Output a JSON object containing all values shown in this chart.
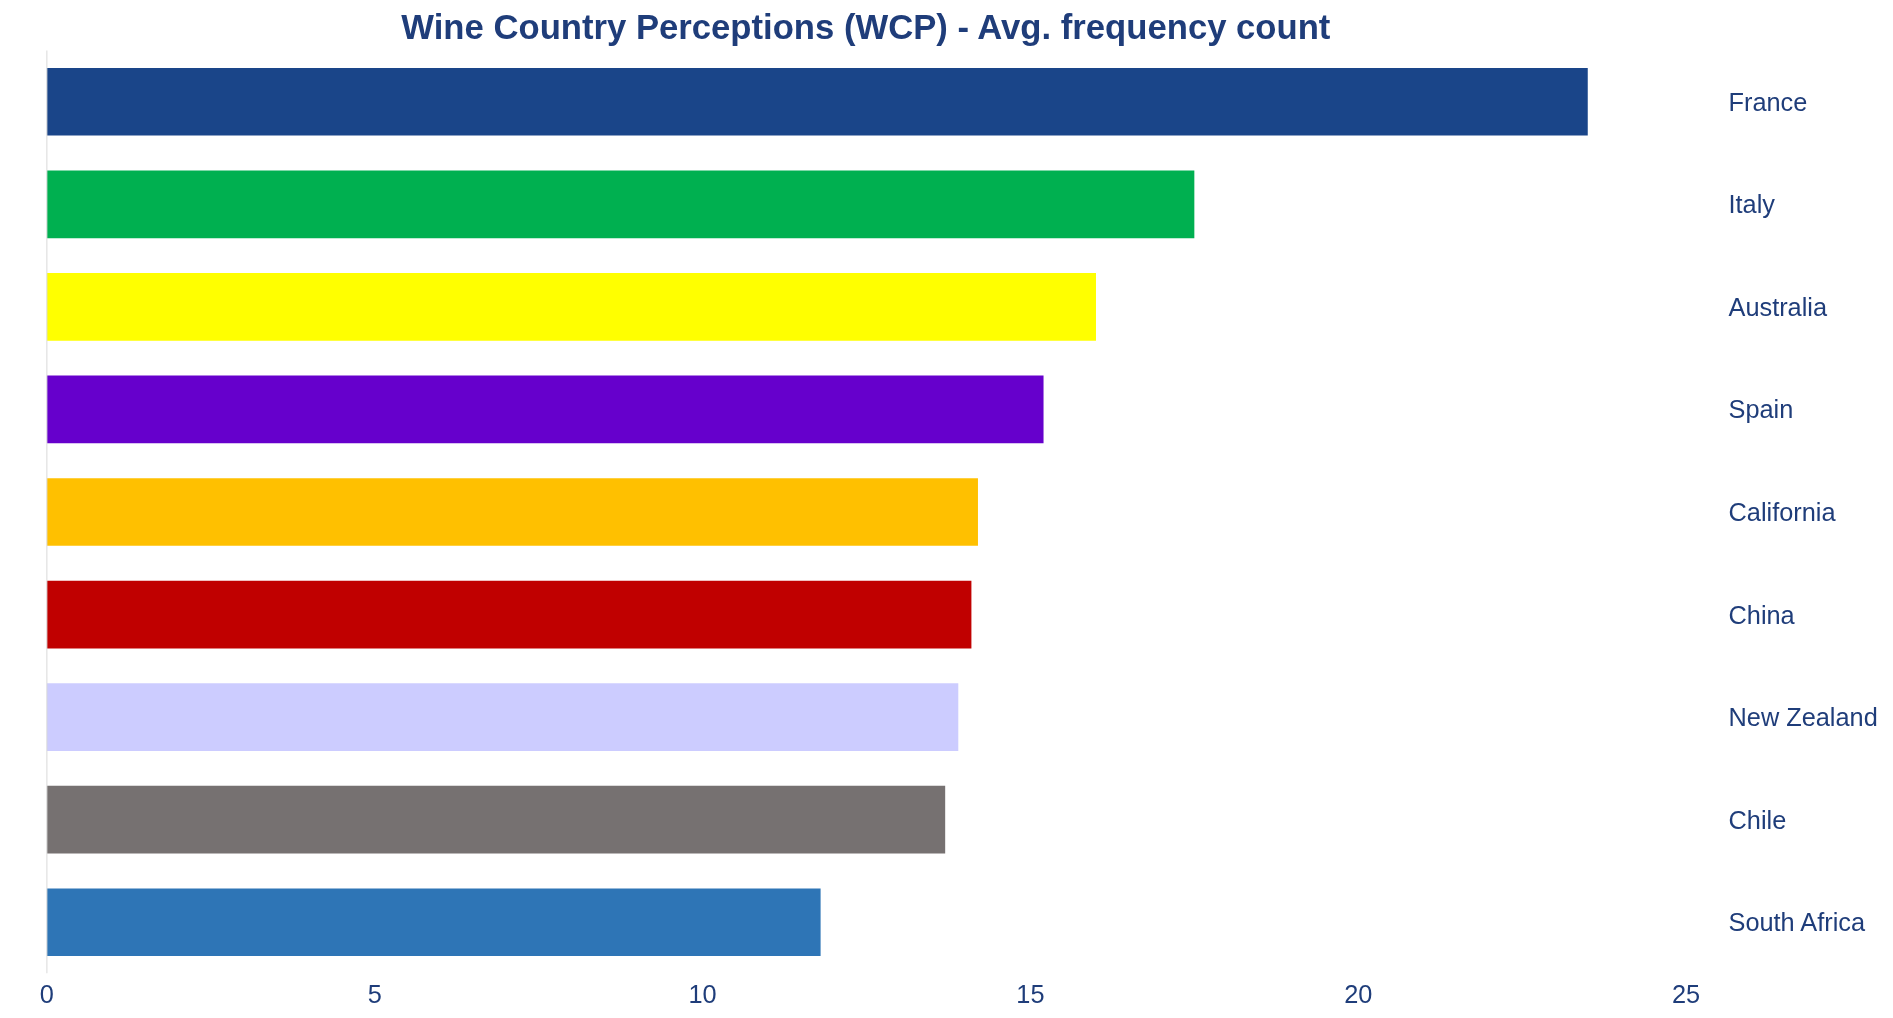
{
  "chart_data": {
    "type": "bar",
    "orientation": "horizontal",
    "title": "Wine Country Perceptions (WCP) - Avg. frequency count",
    "categories": [
      "France",
      "Italy",
      "Australia",
      "Spain",
      "California",
      "China",
      "New Zealand",
      "Chile",
      "South Africa"
    ],
    "values": [
      23.5,
      17.5,
      16.0,
      15.2,
      14.2,
      14.1,
      13.9,
      13.7,
      11.8
    ],
    "colors": [
      "#1a4589",
      "#00b050",
      "#ffff00",
      "#6600cc",
      "#ffc000",
      "#c00000",
      "#ccccff",
      "#767171",
      "#2e75b6"
    ],
    "xlim": [
      0,
      25
    ],
    "xticks": [
      0,
      5,
      10,
      15,
      20,
      25
    ],
    "grid": false
  }
}
